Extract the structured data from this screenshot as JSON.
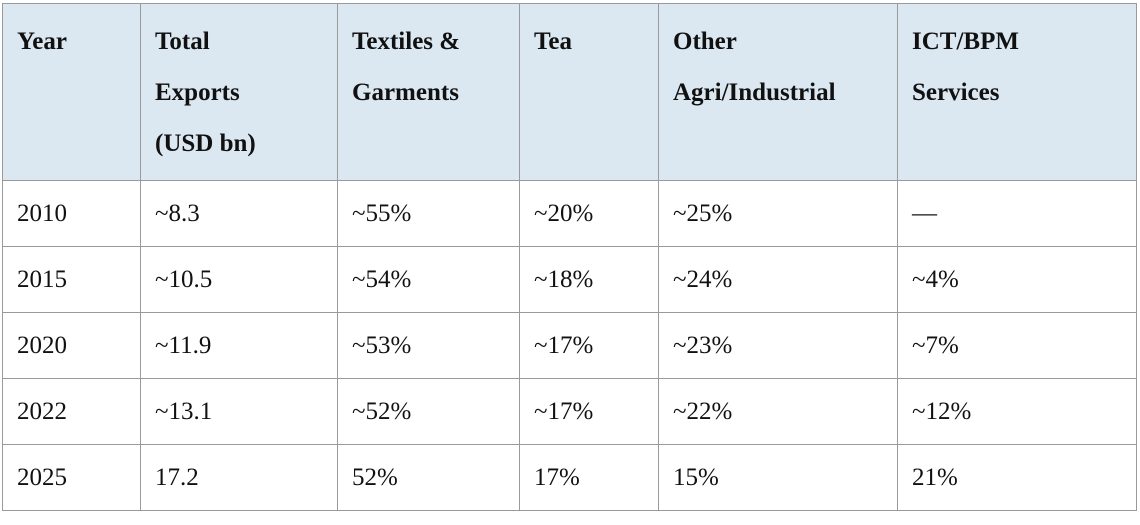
{
  "table": {
    "header": [
      [
        "Year"
      ],
      [
        "Total",
        "Exports",
        "(USD bn)"
      ],
      [
        "Textiles &",
        "Garments"
      ],
      [
        "Tea"
      ],
      [
        "Other",
        "Agri/Industrial"
      ],
      [
        "ICT/BPM",
        "Services"
      ]
    ],
    "rows": [
      [
        "2010",
        "~8.3",
        "~55%",
        "~20%",
        "~25%",
        "—"
      ],
      [
        "2015",
        "~10.5",
        "~54%",
        "~18%",
        "~24%",
        "~4%"
      ],
      [
        "2020",
        "~11.9",
        "~53%",
        "~17%",
        "~23%",
        "~7%"
      ],
      [
        "2022",
        "~13.1",
        "~52%",
        "~17%",
        "~22%",
        "~12%"
      ],
      [
        "2025",
        "17.2",
        "52%",
        "17%",
        "15%",
        "21%"
      ]
    ]
  }
}
